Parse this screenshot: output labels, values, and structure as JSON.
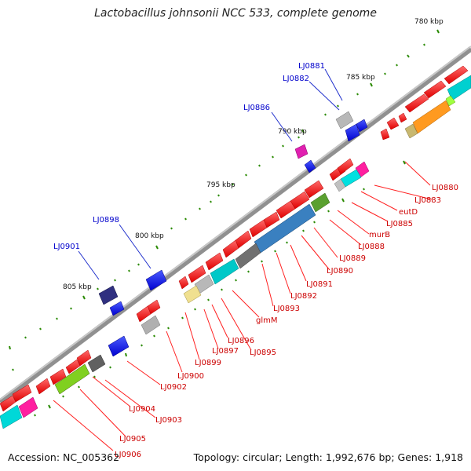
{
  "title": "Lactobacillus johnsonii NCC 533, complete genome",
  "accession": "Accession: NC_005362",
  "summary": "Topology: circular; Length: 1,992,676 bp; Genes: 1,918",
  "colors": {
    "backbone": "#808080",
    "forward_gene": "#ff0000",
    "tick_green": "#2a7a00",
    "label_red": "#cc0000",
    "label_blue": "#0000cc",
    "leader_red": "#ff2020",
    "leader_blue": "#2030cc"
  },
  "scale_labels": [
    "780 kbp",
    "785 kbp",
    "790 kbp",
    "795 kbp",
    "800 kbp",
    "805 kbp"
  ],
  "gene_labels_red": [
    "LJ0880",
    "LJ0883",
    "eutD",
    "LJ0885",
    "murB",
    "LJ0888",
    "LJ0889",
    "LJ0890",
    "LJ0891",
    "LJ0892",
    "LJ0893",
    "glmM",
    "LJ0895",
    "LJ0896",
    "LJ0897",
    "LJ0899",
    "LJ0900",
    "LJ0902",
    "LJ0903",
    "LJ0904",
    "LJ0905",
    "LJ0906"
  ],
  "gene_labels_blue": [
    "LJ0881",
    "LJ0882",
    "LJ0886",
    "LJ0898",
    "LJ0901"
  ]
}
